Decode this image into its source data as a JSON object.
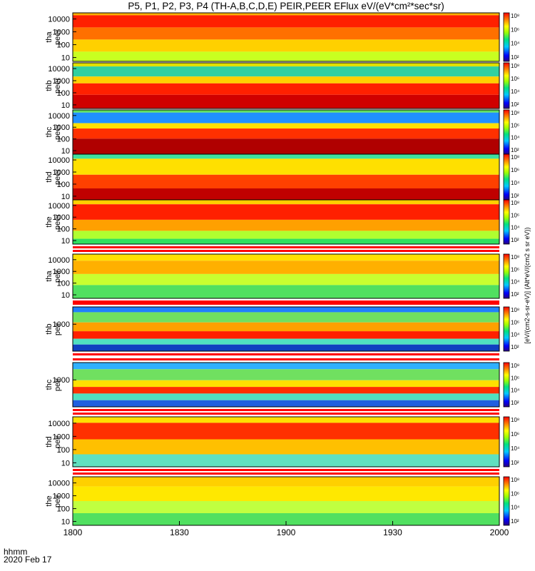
{
  "title": "P5, P1, P2, P3, P4 (TH-A,B,C,D,E) PEIR,PEER EFlux eV/(eV*cm²*sec*sr)",
  "footer": {
    "line1": "hhmm",
    "line2": "2020 Feb 17"
  },
  "colorbar_label": "[eV/(cm2-s-sr-eV)] (Alt*eV/(cm2 s sr eV))",
  "colors": {
    "frame": "#000000",
    "separator": "#ff0000"
  },
  "chart_data": {
    "type": "heatmap",
    "x_ticks": [
      "1800",
      "1830",
      "1900",
      "1930",
      "2000"
    ],
    "x_range_minutes": [
      0,
      120
    ],
    "z_scale": "log",
    "colormap": "rainbow (blue-cyan-green-yellow-red)",
    "panels": [
      {
        "id": "tha-peer",
        "label": [
          "tha",
          "peer"
        ],
        "y_ticks": [
          "10000",
          "1000",
          "100",
          "10"
        ],
        "ylim": [
          5,
          30000
        ],
        "cb_ticks": [
          "10⁸",
          "10⁶",
          "10⁴",
          "10²"
        ]
      },
      {
        "id": "thb-peer",
        "label": [
          "thb",
          "peer"
        ],
        "y_ticks": [
          "10000",
          "1000",
          "100",
          "10"
        ],
        "ylim": [
          5,
          30000
        ],
        "cb_ticks": [
          "10⁸",
          "10⁶",
          "10⁴",
          "10²"
        ]
      },
      {
        "id": "thc-peer",
        "label": [
          "thc",
          "peer"
        ],
        "y_ticks": [
          "10000",
          "1000",
          "100",
          "10"
        ],
        "ylim": [
          5,
          30000
        ],
        "cb_ticks": [
          "10⁸",
          "10⁶",
          "10⁴",
          "10²"
        ]
      },
      {
        "id": "thd-peer",
        "label": [
          "thd",
          "peer"
        ],
        "y_ticks": [
          "10000",
          "1000",
          "100",
          "10"
        ],
        "ylim": [
          5,
          30000
        ],
        "cb_ticks": [
          "10⁸",
          "10⁶",
          "10⁴",
          "10²"
        ]
      },
      {
        "id": "the-peer",
        "label": [
          "the",
          "peer"
        ],
        "y_ticks": [
          "10000",
          "1000",
          "100",
          "10"
        ],
        "ylim": [
          5,
          30000
        ],
        "cb_ticks": [
          "10⁸",
          "10⁶",
          "10⁴",
          "10²"
        ]
      },
      {
        "id": "tha-peir",
        "label": [
          "tha",
          "peir"
        ],
        "y_ticks": [
          "10000",
          "1000",
          "100",
          "10"
        ],
        "ylim": [
          5,
          30000
        ],
        "cb_ticks": [
          "10⁸",
          "10⁶",
          "10⁴",
          "10²"
        ]
      },
      {
        "id": "thb-peir",
        "label": [
          "thb",
          "peir"
        ],
        "y_ticks": [
          "1000"
        ],
        "ylim": [
          5,
          30000
        ],
        "cb_ticks": [
          "10⁸",
          "10⁶",
          "10⁴",
          "10²"
        ]
      },
      {
        "id": "thc-peir",
        "label": [
          "thc",
          "peir"
        ],
        "y_ticks": [
          "1000"
        ],
        "ylim": [
          5,
          30000
        ],
        "cb_ticks": [
          "10⁸",
          "10⁶",
          "10⁴",
          "10²"
        ]
      },
      {
        "id": "thd-peir",
        "label": [
          "thd",
          "peir"
        ],
        "y_ticks": [
          "10000",
          "1000",
          "100",
          "10"
        ],
        "ylim": [
          5,
          30000
        ],
        "cb_ticks": [
          "10⁸",
          "10⁶",
          "10⁴",
          "10²"
        ]
      },
      {
        "id": "the-peir",
        "label": [
          "the",
          "peir"
        ],
        "y_ticks": [
          "10000",
          "1000",
          "100",
          "10"
        ],
        "ylim": [
          5,
          30000
        ],
        "cb_ticks": [
          "10⁸",
          "10⁶",
          "10⁴",
          "10²"
        ]
      }
    ]
  }
}
